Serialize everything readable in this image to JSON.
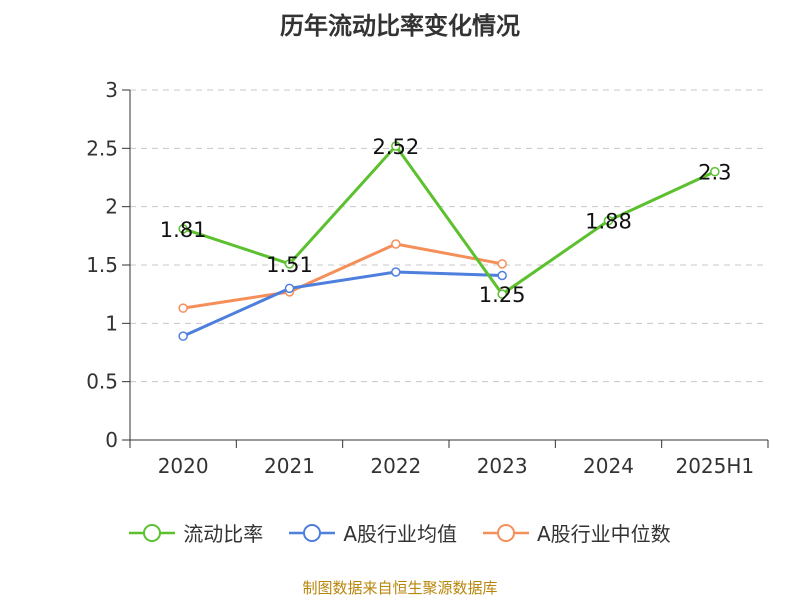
{
  "chart_data": {
    "type": "line",
    "title": "历年流动比率变化情况",
    "categories": [
      "2020",
      "2021",
      "2022",
      "2023",
      "2024",
      "2025H1"
    ],
    "ylim": [
      0,
      3
    ],
    "yticks": [
      "0",
      "0.5",
      "1",
      "1.5",
      "2",
      "2.5",
      "3"
    ],
    "grid": true,
    "legend_position": "bottom",
    "series": [
      {
        "name": "流动比率",
        "color": "#5cc02f",
        "values": [
          1.81,
          1.51,
          2.52,
          1.25,
          1.88,
          2.3
        ],
        "labels": [
          "1.81",
          "1.51",
          "2.52",
          "1.25",
          "1.88",
          "2.3"
        ]
      },
      {
        "name": "A股行业均值",
        "color": "#4f7fdc",
        "values": [
          0.89,
          1.3,
          1.44,
          1.41,
          null,
          null
        ]
      },
      {
        "name": "A股行业中位数",
        "color": "#f58f5a",
        "values": [
          1.13,
          1.27,
          1.68,
          1.51,
          null,
          null
        ]
      }
    ]
  },
  "source": "制图数据来自恒生聚源数据库"
}
